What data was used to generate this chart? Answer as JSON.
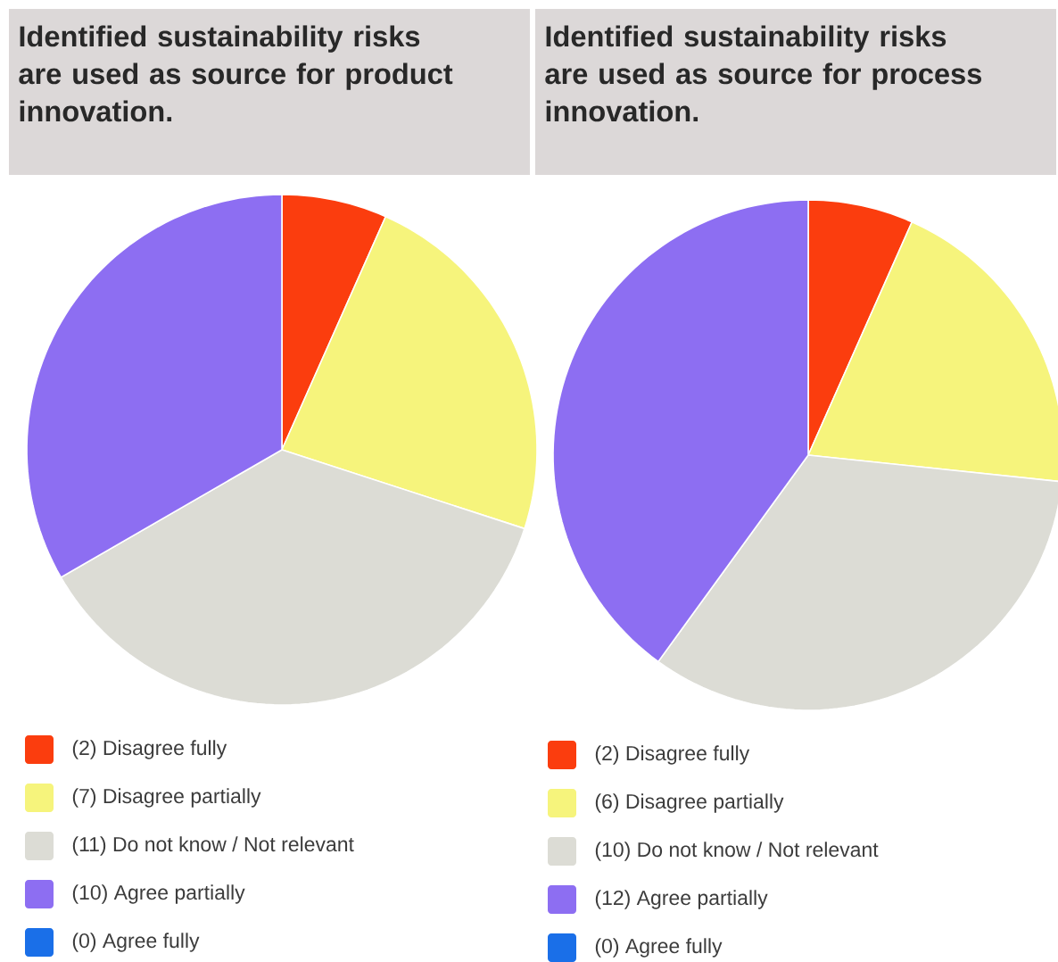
{
  "chart_data": [
    {
      "type": "pie",
      "title": "Identified sustainability risks are used as source for product innovation.",
      "categories": [
        "(2) Disagree fully",
        "(7) Disagree partially",
        "(11) Do not know / Not relevant",
        "(10) Agree partially",
        "(0) Agree fully"
      ],
      "values": [
        2,
        7,
        11,
        10,
        0
      ],
      "colors": [
        "#fb3d0e",
        "#f6f47c",
        "#dcdcd5",
        "#8d6ef2",
        "#1a6fe8"
      ],
      "legend": "bottom"
    },
    {
      "type": "pie",
      "title": "Identified sustainability risks are used as source for process innovation.",
      "categories": [
        "(2) Disagree fully",
        "(6) Disagree partially",
        "(10) Do not know / Not relevant",
        "(12) Agree partially",
        "(0) Agree fully"
      ],
      "values": [
        2,
        6,
        10,
        12,
        0
      ],
      "colors": [
        "#fb3d0e",
        "#f6f47c",
        "#dcdcd5",
        "#8d6ef2",
        "#1a6fe8"
      ],
      "legend": "bottom"
    }
  ]
}
